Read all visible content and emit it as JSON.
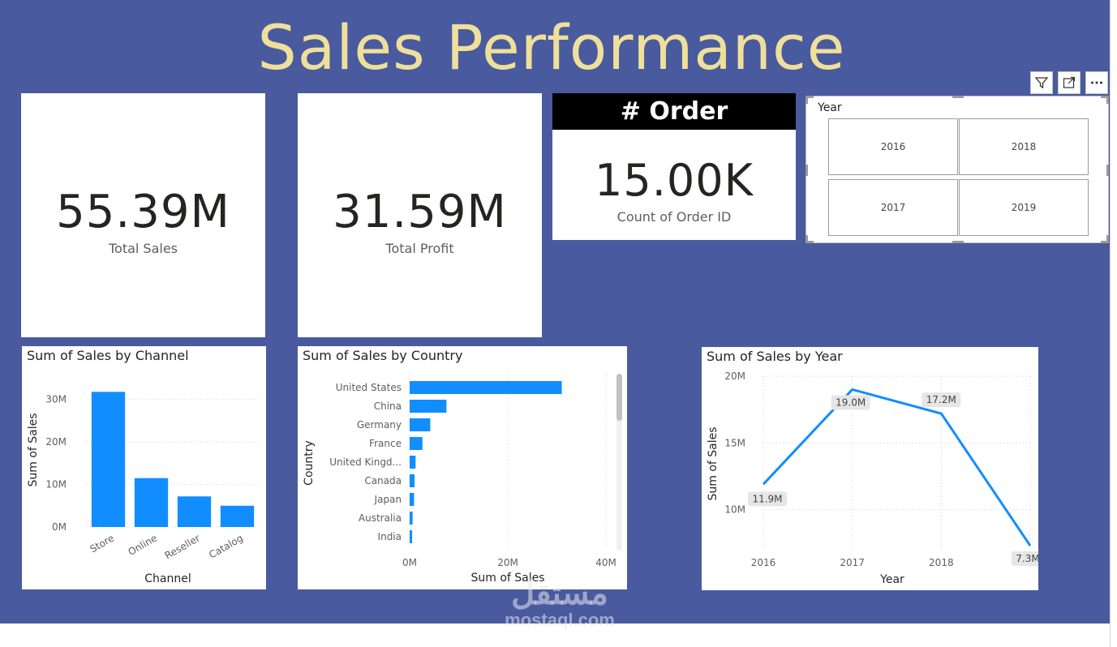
{
  "page": {
    "title": "Sales Performance"
  },
  "kpis": {
    "total_sales": {
      "value": "55.39M",
      "label": "Total Sales"
    },
    "total_profit": {
      "value": "31.59M",
      "label": "Total Profit"
    },
    "orders": {
      "header": "# Order",
      "value": "15.00K",
      "label": "Count of Order ID"
    }
  },
  "slicer": {
    "title": "Year",
    "options": [
      "2016",
      "2018",
      "2017",
      "2019"
    ]
  },
  "toolbar": {
    "icons": [
      "filter-icon",
      "focus-mode-icon",
      "more-options-icon"
    ]
  },
  "charts": {
    "channel": {
      "title": "Sum of Sales by Channel"
    },
    "country": {
      "title": "Sum of Sales by Country"
    },
    "year": {
      "title": "Sum of Sales by Year"
    }
  },
  "watermark": {
    "arabic": "مستقل",
    "latin": "mostaql.com"
  },
  "colors": {
    "accent": "#118dff",
    "canvas": "#4a5a9e",
    "title": "#eee09a"
  },
  "chart_data": [
    {
      "type": "bar",
      "title": "Sum of Sales by Channel",
      "categories": [
        "Store",
        "Online",
        "Reseller",
        "Catalog"
      ],
      "values": [
        31.8,
        11.5,
        7.2,
        5.0
      ],
      "xlabel": "Channel",
      "ylabel": "Sum of Sales",
      "yticks": [
        "0M",
        "10M",
        "20M",
        "30M"
      ],
      "ylim": [
        0,
        33
      ]
    },
    {
      "type": "bar",
      "title": "Sum of Sales by Country",
      "categories": [
        "United States",
        "China",
        "Germany",
        "France",
        "United Kingd...",
        "Canada",
        "Japan",
        "Australia",
        "India"
      ],
      "values": [
        31.0,
        7.5,
        4.2,
        2.6,
        1.2,
        1.0,
        0.9,
        0.6,
        0.5
      ],
      "xlabel": "Sum of Sales",
      "ylabel": "Country",
      "xticks": [
        "0M",
        "20M",
        "40M"
      ],
      "xlim": [
        0,
        40
      ]
    },
    {
      "type": "line",
      "title": "Sum of Sales by Year",
      "x": [
        "2016",
        "2017",
        "2018",
        "2019"
      ],
      "values": [
        11.9,
        19.0,
        17.2,
        7.3
      ],
      "labels": [
        "11.9M",
        "19.0M",
        "17.2M",
        "7.3M"
      ],
      "xlabel": "Year",
      "ylabel": "Sum of Sales",
      "yticks": [
        "10M",
        "15M",
        "20M"
      ],
      "ylim": [
        7,
        20
      ]
    }
  ]
}
